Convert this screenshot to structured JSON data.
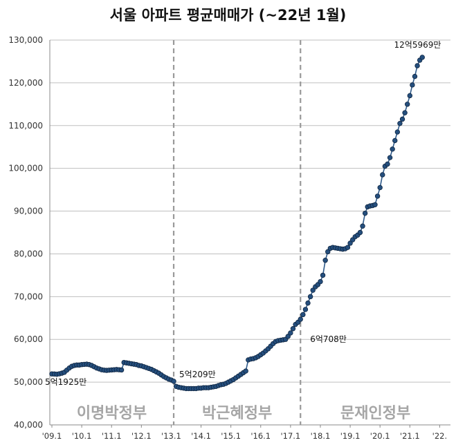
{
  "chart_data": {
    "type": "line",
    "title": "서울 아파트 평균매매가 (~22년 1월)",
    "xlabel": "",
    "ylabel": "",
    "ylim": [
      40000,
      130000
    ],
    "y_ticks": [
      "40,000",
      "50,000",
      "60,000",
      "70,000",
      "80,000",
      "90,000",
      "100,000",
      "110,000",
      "120,000",
      "130,000"
    ],
    "x_ticks": [
      "'09.1",
      "'10.1",
      "'11.1",
      "'12.1",
      "'13.1",
      "'14.1",
      "'15.1",
      "'16.1",
      "'17.1",
      "'18.1",
      "'19.1",
      "'20.1",
      "'21.1",
      "'22."
    ],
    "x_start": "2009-01",
    "grid": true,
    "legend": "none",
    "line_color": "#2e5a8a",
    "marker_color": "#254f7e",
    "divider_color": "#999999",
    "series": [
      {
        "values": [
          51925,
          51900,
          51850,
          51950,
          52100,
          52300,
          52800,
          53300,
          53700,
          53900,
          54000,
          54000,
          54100,
          54150,
          54200,
          54100,
          53900,
          53600,
          53300,
          53100,
          52900,
          52800,
          52750,
          52800,
          52850,
          52900,
          52950,
          52900,
          52850,
          54600,
          54500,
          54400,
          54300,
          54200,
          54100,
          53900,
          53800,
          53600,
          53400,
          53200,
          53000,
          52700,
          52400,
          52100,
          51700,
          51300,
          51000,
          50700,
          50500,
          50209,
          49000,
          48800,
          48700,
          48600,
          48500,
          48500,
          48500,
          48500,
          48500,
          48600,
          48600,
          48700,
          48700,
          48700,
          48800,
          48900,
          49000,
          49200,
          49400,
          49500,
          49700,
          50000,
          50300,
          50600,
          51000,
          51400,
          51800,
          52200,
          52600,
          55200,
          55400,
          55500,
          55700,
          56000,
          56400,
          56800,
          57300,
          57800,
          58400,
          59000,
          59500,
          59700,
          59800,
          59900,
          60000,
          60708,
          61500,
          62500,
          63500,
          64000,
          64700,
          65800,
          67000,
          68500,
          70000,
          71500,
          72300,
          72800,
          73500,
          75000,
          78500,
          80500,
          81300,
          81500,
          81400,
          81300,
          81200,
          81100,
          81200,
          81500,
          82500,
          83300,
          84000,
          84400,
          85000,
          86500,
          89500,
          91000,
          91200,
          91300,
          91500,
          93500,
          95500,
          98500,
          100500,
          101000,
          102500,
          104500,
          106500,
          108500,
          110500,
          111500,
          113000,
          115000,
          117000,
          119500,
          121500,
          124000,
          125300,
          125969
        ]
      }
    ],
    "dividers": [
      "2013-02",
      "2017-05"
    ],
    "eras": [
      "이명박정부",
      "박근혜정부",
      "문재인정부"
    ],
    "annotations": [
      {
        "text": "5억1925만",
        "x": "2009-01",
        "y": 51925
      },
      {
        "text": "5억209만",
        "x": "2013-02",
        "y": 50209
      },
      {
        "text": "6억708만",
        "x": "2017-05",
        "y": 60708
      },
      {
        "text": "12억5969만",
        "x": "2022-01",
        "y": 125969
      }
    ]
  }
}
